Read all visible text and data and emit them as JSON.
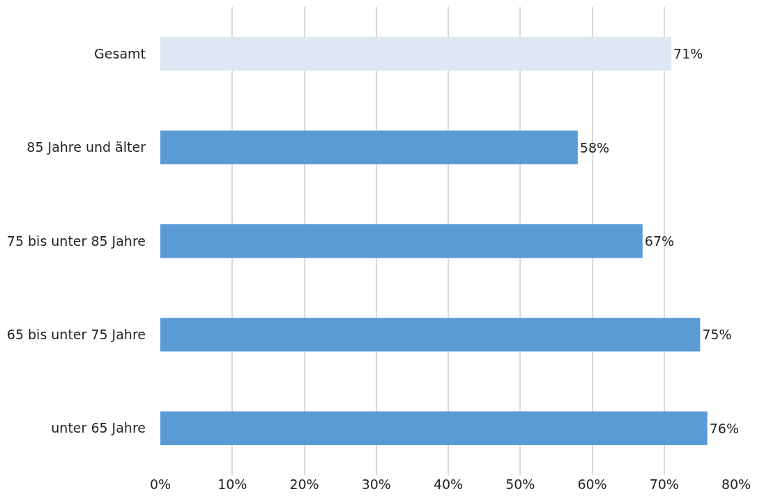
{
  "chart_data": {
    "type": "bar",
    "orientation": "horizontal",
    "categories": [
      "Gesamt",
      "85 Jahre und älter",
      "75 bis unter 85 Jahre",
      "65 bis unter 75 Jahre",
      "unter 65 Jahre"
    ],
    "values": [
      71,
      58,
      67,
      75,
      76
    ],
    "value_labels": [
      "71%",
      "58%",
      "67%",
      "75%",
      "76%"
    ],
    "colors": [
      "#dde8f4",
      "#5b9bd5",
      "#5b9bd5",
      "#5b9bd5",
      "#5b9bd5"
    ],
    "xlim": [
      0,
      80
    ],
    "xticks": [
      {
        "value": 0,
        "label": "0%"
      },
      {
        "value": 10,
        "label": "10%"
      },
      {
        "value": 20,
        "label": "20%"
      },
      {
        "value": 30,
        "label": "30%"
      },
      {
        "value": 40,
        "label": "40%"
      },
      {
        "value": 50,
        "label": "50%"
      },
      {
        "value": 60,
        "label": "60%"
      },
      {
        "value": 70,
        "label": "70%"
      },
      {
        "value": 80,
        "label": "80%"
      }
    ],
    "grid": "x"
  }
}
